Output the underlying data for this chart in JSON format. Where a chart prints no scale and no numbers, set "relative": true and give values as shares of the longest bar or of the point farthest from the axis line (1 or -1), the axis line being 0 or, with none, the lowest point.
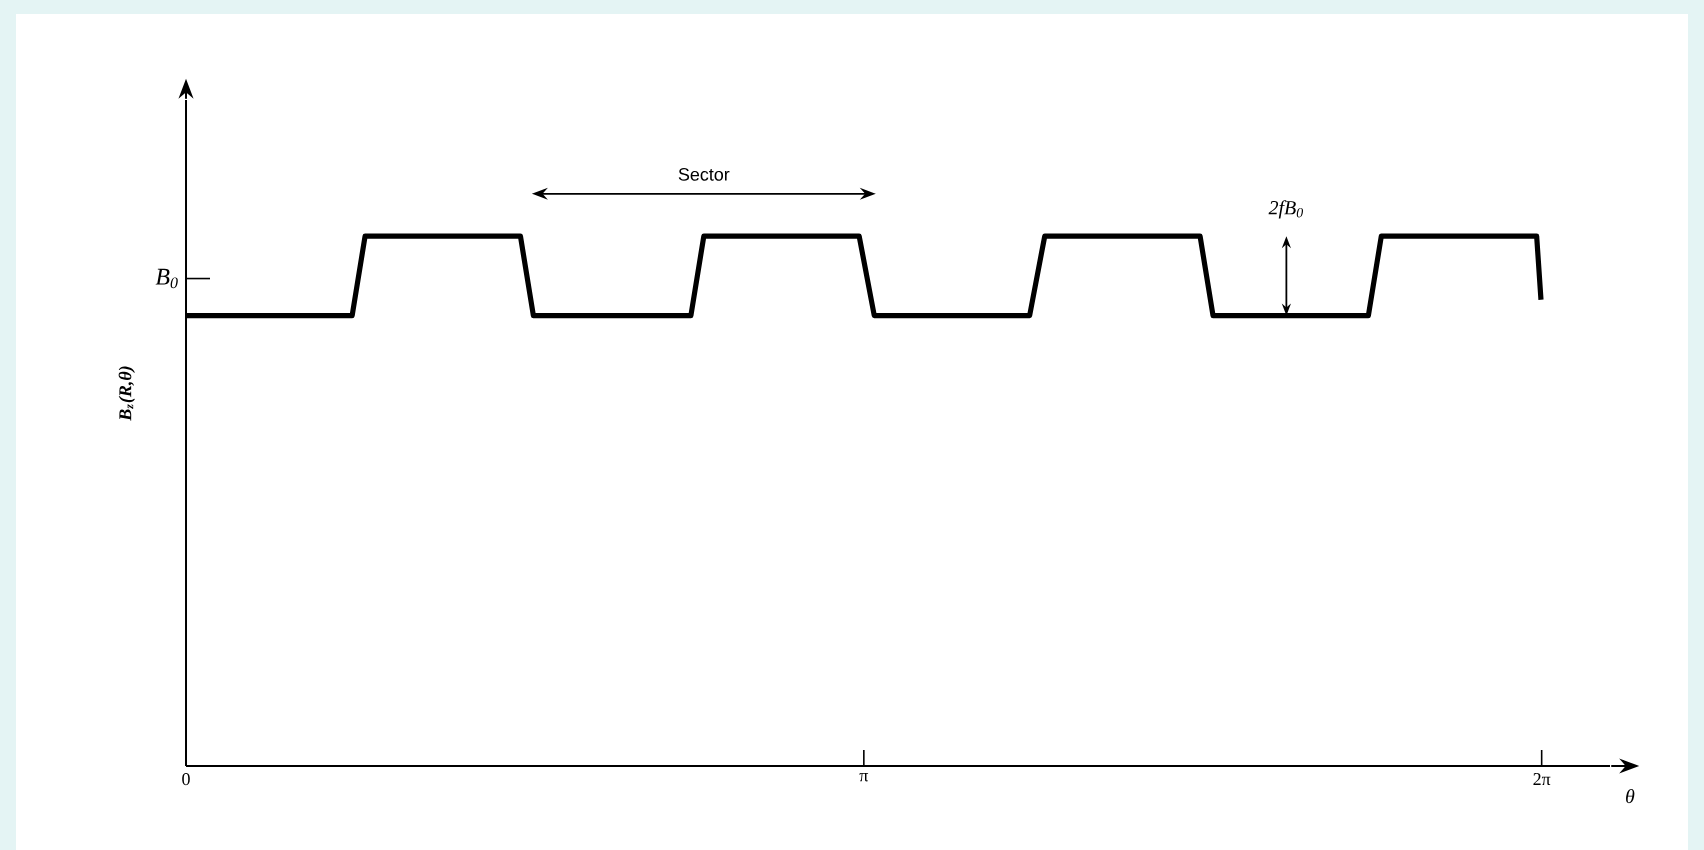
{
  "chart_data": {
    "type": "line",
    "relative": true,
    "xlabel": "θ",
    "ylabel": "B$_{z}$(R,θ)",
    "xlim": [
      0,
      6.6
    ],
    "xticks": [
      0,
      {
        "value": 3.1416,
        "label": "π"
      },
      {
        "value": 6.2832,
        "label": "2π"
      }
    ],
    "annotations": [
      "B$_{0}$",
      "Sector",
      "2fB$_{0}$"
    ],
    "series": [
      {
        "color": "#000000",
        "x": [
          0,
          0.77,
          0.83,
          1.55,
          1.61,
          2.34,
          2.4,
          3.12,
          3.19,
          3.91,
          3.98,
          4.7,
          4.76,
          5.48,
          5.54,
          6.26,
          6.28
        ],
        "values": [
          0.85,
          0.85,
          1,
          1,
          0.85,
          0.85,
          1,
          1,
          0.85,
          0.85,
          1,
          1,
          0.85,
          0.85,
          1,
          1,
          0.88
        ]
      }
    ],
    "marker": "none",
    "line_style": "solid",
    "grid": false
  }
}
